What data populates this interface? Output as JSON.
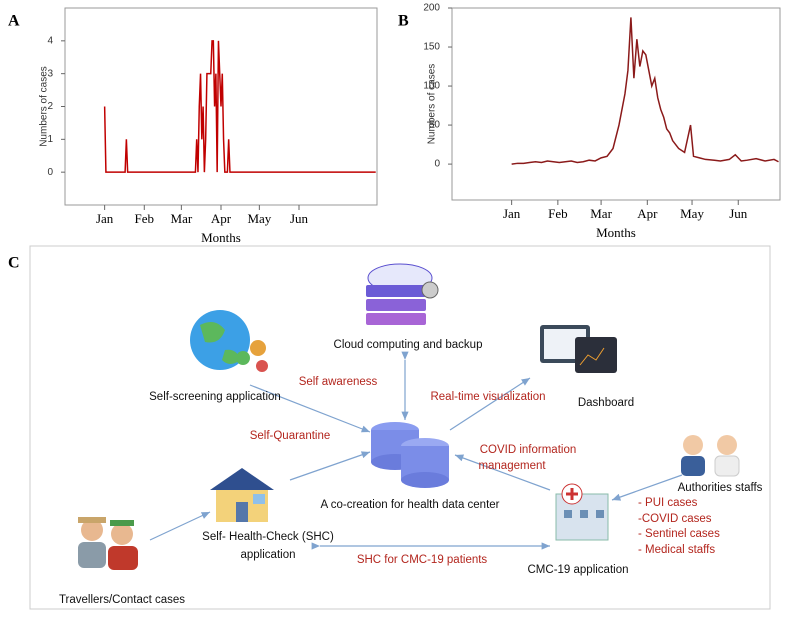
{
  "chart_data": [
    {
      "type": "line",
      "panel": "A",
      "x_label": "Months",
      "y_label": "Numbers of cases",
      "color": "#c00000",
      "xlim": [
        -31,
        213
      ],
      "ylim": [
        -1,
        5
      ],
      "yticks": [
        0,
        1,
        2,
        3,
        4
      ],
      "xticks": [
        {
          "value": 0,
          "label": "Jan"
        },
        {
          "value": 31,
          "label": "Feb"
        },
        {
          "value": 60,
          "label": "Mar"
        },
        {
          "value": 91,
          "label": "Apr"
        },
        {
          "value": 121,
          "label": "May"
        },
        {
          "value": 152,
          "label": "Jun"
        }
      ],
      "series": [
        {
          "x": [
            0,
            1,
            2,
            16,
            17,
            18,
            71,
            72,
            73,
            74,
            75,
            76,
            77,
            78,
            79,
            80,
            81,
            82,
            83,
            84,
            85,
            86,
            87,
            88,
            89,
            90,
            91,
            92,
            93,
            94,
            95,
            96,
            97,
            98,
            99,
            100,
            212
          ],
          "values": [
            2,
            0,
            0,
            0,
            1,
            0,
            0,
            1,
            0,
            2,
            3,
            1,
            2,
            0,
            1,
            3,
            3,
            3,
            3,
            4,
            4,
            2,
            3,
            0,
            4,
            3,
            2,
            3,
            1,
            0,
            0,
            0,
            1,
            0,
            0,
            0,
            0
          ]
        }
      ]
    },
    {
      "type": "line",
      "panel": "B",
      "x_label": "Months",
      "y_label": "Numbers of cases",
      "color": "#8b1a1a",
      "xlim": [
        -40,
        180
      ],
      "ylim": [
        -46,
        200
      ],
      "yticks": [
        0,
        50,
        100,
        150,
        200
      ],
      "xticks": [
        {
          "value": 0,
          "label": "Jan"
        },
        {
          "value": 31,
          "label": "Feb"
        },
        {
          "value": 60,
          "label": "Mar"
        },
        {
          "value": 91,
          "label": "Apr"
        },
        {
          "value": 121,
          "label": "May"
        },
        {
          "value": 152,
          "label": "Jun"
        }
      ],
      "series": [
        {
          "x": [
            0,
            4,
            8,
            12,
            16,
            20,
            24,
            28,
            32,
            36,
            40,
            44,
            48,
            52,
            56,
            60,
            64,
            68,
            72,
            76,
            78,
            80,
            82,
            84,
            86,
            88,
            90,
            92,
            94,
            96,
            98,
            100,
            102,
            104,
            106,
            108,
            110,
            112,
            116,
            120,
            122,
            126,
            130,
            136,
            140,
            146,
            150,
            154,
            158,
            164,
            170,
            176,
            179
          ],
          "values": [
            0,
            1,
            1,
            2,
            3,
            2,
            4,
            3,
            2,
            3,
            4,
            2,
            3,
            5,
            4,
            8,
            10,
            20,
            50,
            90,
            120,
            188,
            110,
            160,
            125,
            145,
            140,
            120,
            100,
            110,
            85,
            70,
            60,
            45,
            40,
            30,
            25,
            20,
            15,
            50,
            10,
            8,
            6,
            5,
            4,
            6,
            12,
            4,
            5,
            7,
            4,
            6,
            3
          ]
        }
      ]
    }
  ],
  "diagram": {
    "panel": "C",
    "nodes": {
      "cloud": "Cloud computing and backup",
      "screening": "Self-screening application",
      "dashboard": "Dashboard",
      "center": "A co-creation for health data center",
      "authorities": "Authorities staffs",
      "shc_1": "Self- Health-Check (SHC)",
      "shc_2": "application",
      "cmc": "CMC-19 application",
      "travellers": "Travellers/Contact cases"
    },
    "edge_labels": {
      "awareness": "Self awareness",
      "realtime": "Real-time visualization",
      "quarantine": "Self-Quarantine",
      "covid_1": "COVID information",
      "covid_2": "management",
      "shc_cmc": "SHC for CMC-19 patients"
    },
    "case_list": [
      "- PUI cases",
      "-COVID cases",
      "- Sentinel cases",
      "- Medical staffs"
    ]
  }
}
